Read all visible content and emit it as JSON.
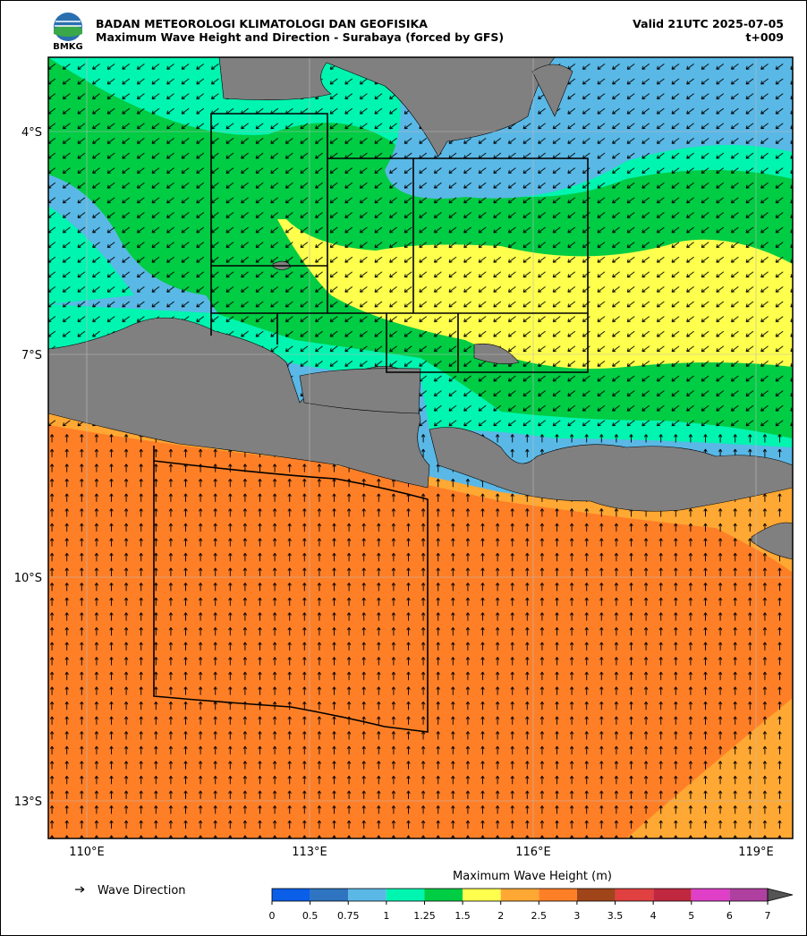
{
  "header": {
    "logo": "BMKG",
    "title": "BADAN METEOROLOGI KLIMATOLOGI DAN GEOFISIKA",
    "subtitle": "Maximum Wave Height and Direction - Surabaya (forced by GFS)",
    "valid": "Valid 21UTC 2025-07-05",
    "lead": "t+009"
  },
  "map": {
    "lat_labels": [
      "4°S",
      "7°S",
      "10°S",
      "13°S"
    ],
    "lon_labels": [
      "110°E",
      "113°E",
      "116°E",
      "119°E"
    ]
  },
  "legend": {
    "arrow_label": "Wave Direction"
  },
  "colorbar": {
    "label": "Maximum Wave Height (m)",
    "ticks": [
      0,
      0.5,
      0.75,
      1,
      1.25,
      1.5,
      2,
      2.5,
      3,
      3.5,
      4,
      5,
      6,
      7
    ],
    "colors": [
      "#0a5ee8",
      "#2f74c0",
      "#5ab8e6",
      "#00f5b0",
      "#00cc44",
      "#ffff4d",
      "#ffa833",
      "#ff7f27",
      "#a0451a",
      "#e04040",
      "#c02840",
      "#e040c8",
      "#b040a0"
    ]
  }
}
